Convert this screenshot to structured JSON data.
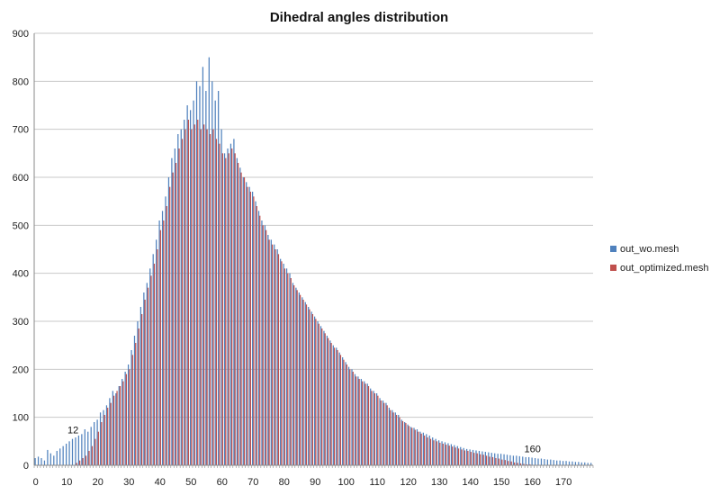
{
  "chart_data": {
    "type": "bar",
    "title": "Dihedral angles distribution",
    "xlabel": "",
    "ylabel": "",
    "ylim": [
      0,
      900
    ],
    "yticks": [
      0,
      100,
      200,
      300,
      400,
      500,
      600,
      700,
      800,
      900
    ],
    "xlim": [
      0,
      179
    ],
    "xticks": [
      0,
      10,
      20,
      30,
      40,
      50,
      60,
      70,
      80,
      90,
      100,
      110,
      120,
      130,
      140,
      150,
      160,
      170
    ],
    "grid": "horizontal",
    "legend_position": "right",
    "x": [
      0,
      1,
      2,
      3,
      4,
      5,
      6,
      7,
      8,
      9,
      10,
      11,
      12,
      13,
      14,
      15,
      16,
      17,
      18,
      19,
      20,
      21,
      22,
      23,
      24,
      25,
      26,
      27,
      28,
      29,
      30,
      31,
      32,
      33,
      34,
      35,
      36,
      37,
      38,
      39,
      40,
      41,
      42,
      43,
      44,
      45,
      46,
      47,
      48,
      49,
      50,
      51,
      52,
      53,
      54,
      55,
      56,
      57,
      58,
      59,
      60,
      61,
      62,
      63,
      64,
      65,
      66,
      67,
      68,
      69,
      70,
      71,
      72,
      73,
      74,
      75,
      76,
      77,
      78,
      79,
      80,
      81,
      82,
      83,
      84,
      85,
      86,
      87,
      88,
      89,
      90,
      91,
      92,
      93,
      94,
      95,
      96,
      97,
      98,
      99,
      100,
      101,
      102,
      103,
      104,
      105,
      106,
      107,
      108,
      109,
      110,
      111,
      112,
      113,
      114,
      115,
      116,
      117,
      118,
      119,
      120,
      121,
      122,
      123,
      124,
      125,
      126,
      127,
      128,
      129,
      130,
      131,
      132,
      133,
      134,
      135,
      136,
      137,
      138,
      139,
      140,
      141,
      142,
      143,
      144,
      145,
      146,
      147,
      148,
      149,
      150,
      151,
      152,
      153,
      154,
      155,
      156,
      157,
      158,
      159,
      160,
      161,
      162,
      163,
      164,
      165,
      166,
      167,
      168,
      169,
      170,
      171,
      172,
      173,
      174,
      175,
      176,
      177,
      178,
      179
    ],
    "series": [
      {
        "name": "out_wo.mesh",
        "color": "#4f81bd",
        "values": [
          15,
          18,
          15,
          10,
          32,
          25,
          20,
          30,
          35,
          40,
          45,
          50,
          55,
          58,
          62,
          65,
          75,
          70,
          80,
          90,
          95,
          110,
          115,
          125,
          140,
          155,
          150,
          165,
          180,
          195,
          210,
          240,
          270,
          300,
          330,
          360,
          380,
          410,
          440,
          470,
          510,
          530,
          560,
          600,
          640,
          660,
          690,
          700,
          720,
          750,
          740,
          760,
          800,
          790,
          830,
          780,
          850,
          800,
          760,
          780,
          700,
          650,
          660,
          670,
          680,
          640,
          620,
          600,
          590,
          580,
          570,
          550,
          530,
          510,
          500,
          480,
          470,
          460,
          450,
          430,
          420,
          410,
          400,
          380,
          370,
          360,
          350,
          340,
          330,
          320,
          310,
          300,
          290,
          280,
          270,
          260,
          250,
          245,
          235,
          225,
          215,
          205,
          200,
          190,
          185,
          180,
          175,
          170,
          160,
          155,
          150,
          140,
          135,
          130,
          120,
          115,
          110,
          105,
          95,
          90,
          85,
          80,
          78,
          75,
          70,
          68,
          65,
          62,
          58,
          55,
          52,
          50,
          48,
          46,
          44,
          42,
          40,
          38,
          36,
          34,
          33,
          32,
          31,
          30,
          29,
          28,
          27,
          26,
          25,
          24,
          24,
          23,
          22,
          21,
          20,
          20,
          19,
          18,
          17,
          17,
          16,
          15,
          14,
          14,
          13,
          12,
          12,
          11,
          10,
          10,
          9,
          9,
          8,
          8,
          7,
          7,
          6,
          6,
          5,
          5
        ],
        "labels": [
          {
            "x": 12,
            "text": "12"
          },
          {
            "x": 160,
            "text": "160"
          }
        ]
      },
      {
        "name": "out_optimized.mesh",
        "color": "#c0504d",
        "values": [
          0,
          0,
          0,
          0,
          0,
          0,
          0,
          0,
          0,
          0,
          0,
          0,
          0,
          5,
          10,
          15,
          20,
          30,
          40,
          55,
          70,
          90,
          105,
          120,
          130,
          145,
          155,
          165,
          175,
          190,
          200,
          230,
          255,
          285,
          315,
          345,
          370,
          395,
          420,
          450,
          490,
          510,
          540,
          580,
          610,
          630,
          660,
          680,
          700,
          720,
          700,
          710,
          720,
          700,
          710,
          700,
          690,
          700,
          680,
          670,
          650,
          640,
          650,
          660,
          650,
          630,
          610,
          600,
          580,
          570,
          560,
          540,
          520,
          500,
          490,
          470,
          460,
          450,
          440,
          425,
          410,
          400,
          390,
          375,
          365,
          355,
          345,
          335,
          325,
          315,
          305,
          295,
          285,
          275,
          265,
          255,
          245,
          240,
          230,
          220,
          210,
          200,
          195,
          185,
          180,
          175,
          170,
          165,
          155,
          150,
          145,
          135,
          130,
          125,
          115,
          110,
          105,
          100,
          92,
          88,
          82,
          78,
          74,
          70,
          66,
          62,
          58,
          55,
          52,
          50,
          47,
          45,
          43,
          41,
          39,
          37,
          35,
          33,
          31,
          30,
          28,
          26,
          25,
          23,
          22,
          20,
          18,
          17,
          15,
          14,
          12,
          11,
          9,
          8,
          6,
          5,
          4,
          3,
          2,
          2,
          1,
          1,
          0,
          0,
          0,
          0,
          0,
          0,
          0,
          0,
          0,
          0,
          0,
          0,
          0,
          0,
          0,
          0,
          0,
          0
        ],
        "labels": []
      }
    ]
  }
}
